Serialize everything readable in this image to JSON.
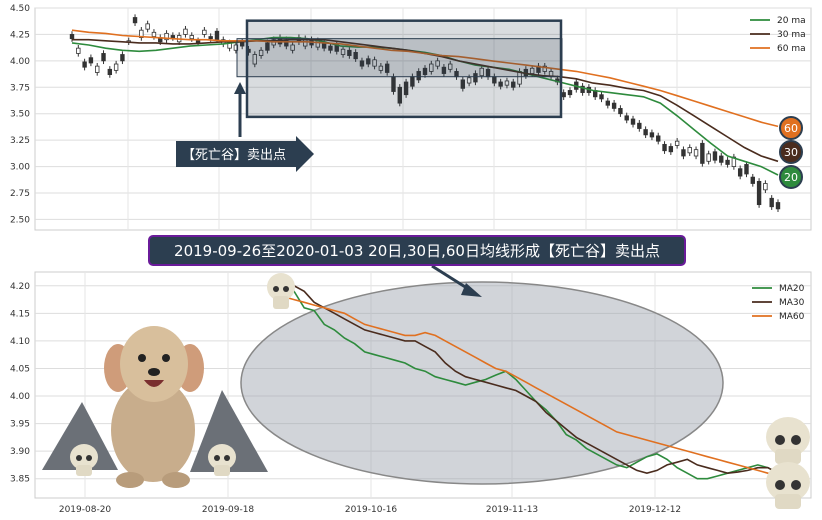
{
  "colors": {
    "ma20": "#2e8b3d",
    "ma30": "#4a2c1e",
    "ma60": "#e07020",
    "candle": "#333333",
    "box": "#2c3e50",
    "banner_border": "#6a1b9a",
    "banner_fill": "#2c3e50"
  },
  "annotation_label": "【死亡谷】卖出点",
  "banner_text": "2019-09-26至2020-01-03 20日,30日,60日均线形成【死亡谷】卖出点",
  "chart_data": [
    {
      "type": "candlestick",
      "title": "",
      "ylim": [
        2.4,
        4.5
      ],
      "yticks": [
        "2.50",
        "2.75",
        "3.00",
        "3.25",
        "3.50",
        "3.75",
        "4.00",
        "4.25",
        "4.50"
      ],
      "ytick_values": [
        2.5,
        2.75,
        3.0,
        3.25,
        3.5,
        3.75,
        4.0,
        4.25,
        4.5
      ],
      "grid": true,
      "legend_position": "top-right",
      "series": [
        {
          "name": "20 ma",
          "color_key": "ma20",
          "values": [
            4.17,
            4.15,
            4.12,
            4.1,
            4.09,
            4.1,
            4.12,
            4.14,
            4.15,
            4.16,
            4.18,
            4.2,
            4.22,
            4.22,
            4.21,
            4.18,
            4.14,
            4.13,
            4.13,
            4.12,
            4.1,
            4.08,
            4.05,
            4.0,
            3.96,
            3.94,
            3.92,
            3.88,
            3.84,
            3.8,
            3.76,
            3.72,
            3.7,
            3.68,
            3.66,
            3.6,
            3.48,
            3.35,
            3.22,
            3.1,
            3.05,
            3.0,
            2.92
          ]
        },
        {
          "name": "30 ma",
          "color_key": "ma30",
          "values": [
            4.2,
            4.2,
            4.19,
            4.18,
            4.17,
            4.17,
            4.16,
            4.16,
            4.17,
            4.18,
            4.18,
            4.19,
            4.19,
            4.2,
            4.2,
            4.2,
            4.18,
            4.16,
            4.14,
            4.12,
            4.1,
            4.07,
            4.04,
            4.0,
            3.97,
            3.94,
            3.91,
            3.88,
            3.86,
            3.85,
            3.83,
            3.79,
            3.77,
            3.74,
            3.72,
            3.67,
            3.58,
            3.48,
            3.38,
            3.28,
            3.18,
            3.1,
            3.05
          ]
        },
        {
          "name": "60 ma",
          "color_key": "ma60",
          "values": [
            4.29,
            4.27,
            4.26,
            4.24,
            4.23,
            4.22,
            4.21,
            4.2,
            4.2,
            4.19,
            4.19,
            4.19,
            4.18,
            4.18,
            4.18,
            4.17,
            4.16,
            4.14,
            4.12,
            4.1,
            4.09,
            4.07,
            4.05,
            4.04,
            4.02,
            4.0,
            3.98,
            3.96,
            3.94,
            3.92,
            3.9,
            3.87,
            3.84,
            3.8,
            3.76,
            3.72,
            3.67,
            3.62,
            3.57,
            3.52,
            3.47,
            3.42,
            3.38
          ]
        }
      ],
      "candles": [
        [
          4.25,
          4.21
        ],
        [
          4.07,
          4.12
        ],
        [
          3.99,
          3.94
        ],
        [
          4.03,
          3.98
        ],
        [
          3.89,
          3.95
        ],
        [
          4.07,
          4.0
        ],
        [
          3.92,
          3.87
        ],
        [
          3.91,
          3.97
        ],
        [
          4.06,
          4.0
        ],
        [
          4.18,
          4.19
        ],
        [
          4.41,
          4.36
        ],
        [
          4.22,
          4.29
        ],
        [
          4.3,
          4.35
        ],
        [
          4.23,
          4.27
        ],
        [
          4.22,
          4.18
        ],
        [
          4.2,
          4.26
        ],
        [
          4.24,
          4.22
        ],
        [
          4.18,
          4.24
        ],
        [
          4.25,
          4.3
        ],
        [
          4.21,
          4.24
        ],
        [
          4.19,
          4.17
        ],
        [
          4.25,
          4.29
        ],
        [
          4.23,
          4.21
        ],
        [
          4.28,
          4.2
        ],
        [
          4.16,
          4.2
        ],
        [
          4.12,
          4.17
        ],
        [
          4.1,
          4.15
        ],
        [
          4.18,
          4.14
        ],
        [
          4.11,
          4.08
        ],
        [
          3.97,
          4.06
        ],
        [
          4.05,
          4.1
        ],
        [
          4.17,
          4.1
        ],
        [
          4.15,
          4.2
        ],
        [
          4.22,
          4.16
        ],
        [
          4.2,
          4.14
        ],
        [
          4.1,
          4.15
        ],
        [
          4.22,
          4.18
        ],
        [
          4.14,
          4.21
        ],
        [
          4.2,
          4.15
        ],
        [
          4.13,
          4.19
        ],
        [
          4.18,
          4.12
        ],
        [
          4.14,
          4.1
        ],
        [
          4.15,
          4.09
        ],
        [
          4.06,
          4.11
        ],
        [
          4.1,
          4.05
        ],
        [
          4.08,
          4.02
        ],
        [
          4.0,
          3.95
        ],
        [
          4.02,
          3.97
        ],
        [
          3.95,
          4.01
        ],
        [
          3.91,
          3.95
        ],
        [
          3.97,
          3.89
        ],
        [
          3.85,
          3.71
        ],
        [
          3.75,
          3.6
        ],
        [
          3.8,
          3.68
        ],
        [
          3.85,
          3.76
        ],
        [
          3.9,
          3.82
        ],
        [
          3.93,
          3.87
        ],
        [
          3.9,
          3.97
        ],
        [
          3.95,
          4.0
        ],
        [
          3.94,
          3.88
        ],
        [
          3.92,
          3.97
        ],
        [
          3.9,
          3.85
        ],
        [
          3.82,
          3.74
        ],
        [
          3.79,
          3.84
        ],
        [
          3.88,
          3.8
        ],
        [
          3.86,
          3.93
        ],
        [
          3.92,
          3.85
        ],
        [
          3.85,
          3.79
        ],
        [
          3.8,
          3.76
        ],
        [
          3.77,
          3.81
        ],
        [
          3.8,
          3.75
        ],
        [
          3.78,
          3.9
        ],
        [
          3.92,
          3.86
        ],
        [
          3.88,
          3.93
        ],
        [
          3.95,
          3.89
        ],
        [
          3.9,
          3.95
        ],
        [
          3.85,
          3.9
        ],
        [
          3.83,
          3.8
        ],
        [
          3.7,
          3.66
        ],
        [
          3.72,
          3.68
        ],
        [
          3.8,
          3.73
        ],
        [
          3.76,
          3.7
        ],
        [
          3.75,
          3.7
        ],
        [
          3.72,
          3.66
        ],
        [
          3.68,
          3.64
        ],
        [
          3.62,
          3.58
        ],
        [
          3.6,
          3.55
        ],
        [
          3.55,
          3.5
        ],
        [
          3.48,
          3.44
        ],
        [
          3.45,
          3.4
        ],
        [
          3.41,
          3.36
        ],
        [
          3.35,
          3.3
        ],
        [
          3.32,
          3.28
        ],
        [
          3.29,
          3.24
        ],
        [
          3.21,
          3.15
        ],
        [
          3.19,
          3.14
        ],
        [
          3.2,
          3.24
        ],
        [
          3.16,
          3.1
        ],
        [
          3.13,
          3.18
        ],
        [
          3.1,
          3.16
        ],
        [
          3.22,
          3.03
        ],
        [
          3.05,
          3.12
        ],
        [
          3.14,
          3.06
        ],
        [
          3.1,
          3.04
        ],
        [
          3.06,
          3.02
        ],
        [
          3.0,
          3.09
        ],
        [
          2.98,
          2.91
        ],
        [
          3.02,
          2.93
        ],
        [
          2.9,
          2.84
        ],
        [
          2.86,
          2.64
        ],
        [
          2.78,
          2.84
        ],
        [
          2.7,
          2.62
        ],
        [
          2.66,
          2.6
        ]
      ],
      "annotation_box": {
        "x_range": [
          "2019-09-26",
          "2019-12-06"
        ],
        "y_range": [
          3.47,
          4.38
        ]
      },
      "end_badges": [
        "60",
        "30",
        "20"
      ]
    },
    {
      "type": "line",
      "title": "",
      "ylim": [
        3.815,
        4.225
      ],
      "yticks": [
        "3.85",
        "3.90",
        "3.95",
        "4.00",
        "4.05",
        "4.10",
        "4.15",
        "4.20"
      ],
      "ytick_values": [
        3.85,
        3.9,
        3.95,
        4.0,
        4.05,
        4.1,
        4.15,
        4.2
      ],
      "x_ticks": [
        "2019-08-20",
        "2019-09-18",
        "2019-10-16",
        "2019-11-13",
        "2019-12-12"
      ],
      "grid": true,
      "legend_position": "top-right",
      "series": [
        {
          "name": "MA20",
          "color_key": "ma20",
          "values": [
            4.21,
            4.19,
            4.16,
            4.155,
            4.13,
            4.12,
            4.105,
            4.095,
            4.08,
            4.075,
            4.07,
            4.065,
            4.06,
            4.05,
            4.045,
            4.035,
            4.03,
            4.025,
            4.02,
            4.025,
            4.03,
            4.038,
            4.045,
            4.03,
            4.01,
            3.99,
            3.975,
            3.955,
            3.93,
            3.92,
            3.905,
            3.895,
            3.885,
            3.875,
            3.87,
            3.88,
            3.89,
            3.895,
            3.885,
            3.87,
            3.86,
            3.85,
            3.85,
            3.855,
            3.86,
            3.865,
            3.87,
            3.875,
            3.87,
            3.86
          ]
        },
        {
          "name": "MA30",
          "color_key": "ma30",
          "values": [
            4.18,
            4.2,
            4.19,
            4.17,
            4.16,
            4.15,
            4.14,
            4.13,
            4.12,
            4.115,
            4.11,
            4.105,
            4.1,
            4.1,
            4.09,
            4.08,
            4.06,
            4.045,
            4.035,
            4.03,
            4.025,
            4.02,
            4.015,
            4.01,
            4.0,
            3.99,
            3.97,
            3.955,
            3.94,
            3.925,
            3.915,
            3.905,
            3.895,
            3.885,
            3.875,
            3.865,
            3.86,
            3.865,
            3.875,
            3.88,
            3.885,
            3.875,
            3.87,
            3.865,
            3.86,
            3.862,
            3.865,
            3.87,
            3.87,
            3.86
          ]
        },
        {
          "name": "MA60",
          "color_key": "ma60",
          "values": [
            4.18,
            4.175,
            4.17,
            4.165,
            4.16,
            4.155,
            4.15,
            4.14,
            4.13,
            4.125,
            4.12,
            4.115,
            4.11,
            4.11,
            4.115,
            4.11,
            4.1,
            4.09,
            4.08,
            4.07,
            4.06,
            4.05,
            4.045,
            4.035,
            4.025,
            4.015,
            4.005,
            3.995,
            3.985,
            3.975,
            3.965,
            3.955,
            3.945,
            3.935,
            3.93,
            3.925,
            3.92,
            3.915,
            3.91,
            3.905,
            3.9,
            3.895,
            3.89,
            3.885,
            3.88,
            3.875,
            3.87,
            3.865,
            3.86,
            3.855
          ]
        }
      ]
    }
  ]
}
